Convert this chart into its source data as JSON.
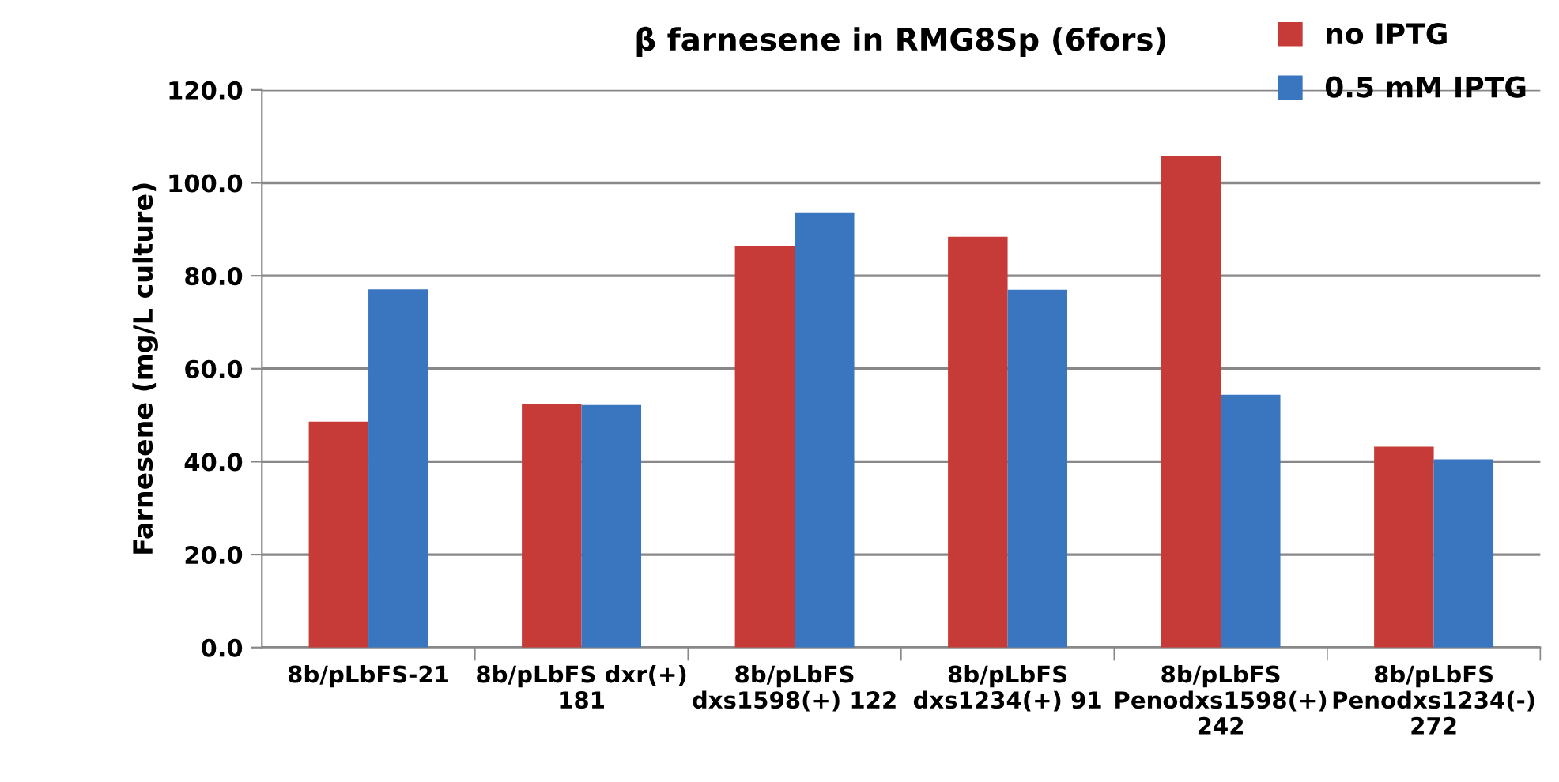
{
  "chart_data": {
    "type": "bar",
    "title": "β farnesene in RMG8Sp (6fors)",
    "ylabel": "Farnesene (mg/L culture)",
    "categories": [
      "8b/pLbFS-21",
      "8b/pLbFS dxr(+) 181",
      "8b/pLbFS dxs1598(+) 122",
      "8b/pLbFS dxs1234(+) 91",
      "8b/pLbFS Penodxs1598(+) 242",
      "8b/pLbFS Penodxs1234(-) 272"
    ],
    "series": [
      {
        "name": "no IPTG",
        "color": "#c63b37",
        "values": [
          48.6,
          52.5,
          86.5,
          88.4,
          105.8,
          43.2
        ]
      },
      {
        "name": "0.5 mM IPTG",
        "color": "#3a76c0",
        "values": [
          77.1,
          52.2,
          93.5,
          77.0,
          54.4,
          40.5
        ]
      }
    ],
    "ylim": [
      0,
      120
    ],
    "yticks": [
      {
        "value": 0,
        "label": "0.0"
      },
      {
        "value": 20,
        "label": "20.0"
      },
      {
        "value": 40,
        "label": "40.0"
      },
      {
        "value": 60,
        "label": "60.0"
      },
      {
        "value": 80,
        "label": "80.0"
      },
      {
        "value": 100,
        "label": "100.0"
      },
      {
        "value": 120,
        "label": "120.0"
      }
    ],
    "grid": "y",
    "legend": "top right"
  }
}
